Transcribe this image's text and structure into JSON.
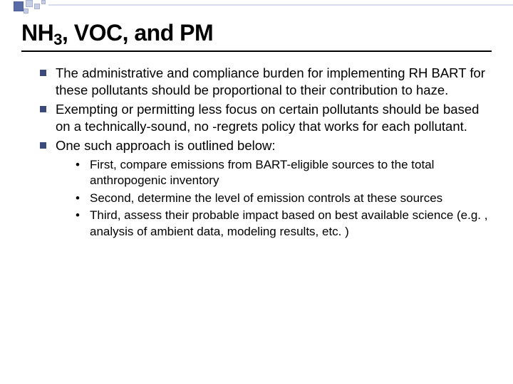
{
  "title_parts": {
    "pre": "NH",
    "sub": "3",
    "post": ", VOC, and PM"
  },
  "bullets": [
    "The administrative and compliance burden for implementing RH BART for these pollutants should be proportional to their contribution to haze.",
    "Exempting or permitting less focus on certain pollutants should be based on a technically-sound, no -regrets policy that works for each pollutant.",
    "One such approach is outlined below:"
  ],
  "sub_bullets": [
    "First, compare emissions from BART-eligible sources to the total anthropogenic inventory",
    "Second, determine the level of emission controls at these sources",
    "Third, assess their probable impact based on best available science (e.g. , analysis of ambient data, modeling results, etc. )"
  ],
  "colors": {
    "bullet_square": "#3a4a7a",
    "decor_dark": "#5a6ca8",
    "decor_light": "#c7cde2"
  }
}
